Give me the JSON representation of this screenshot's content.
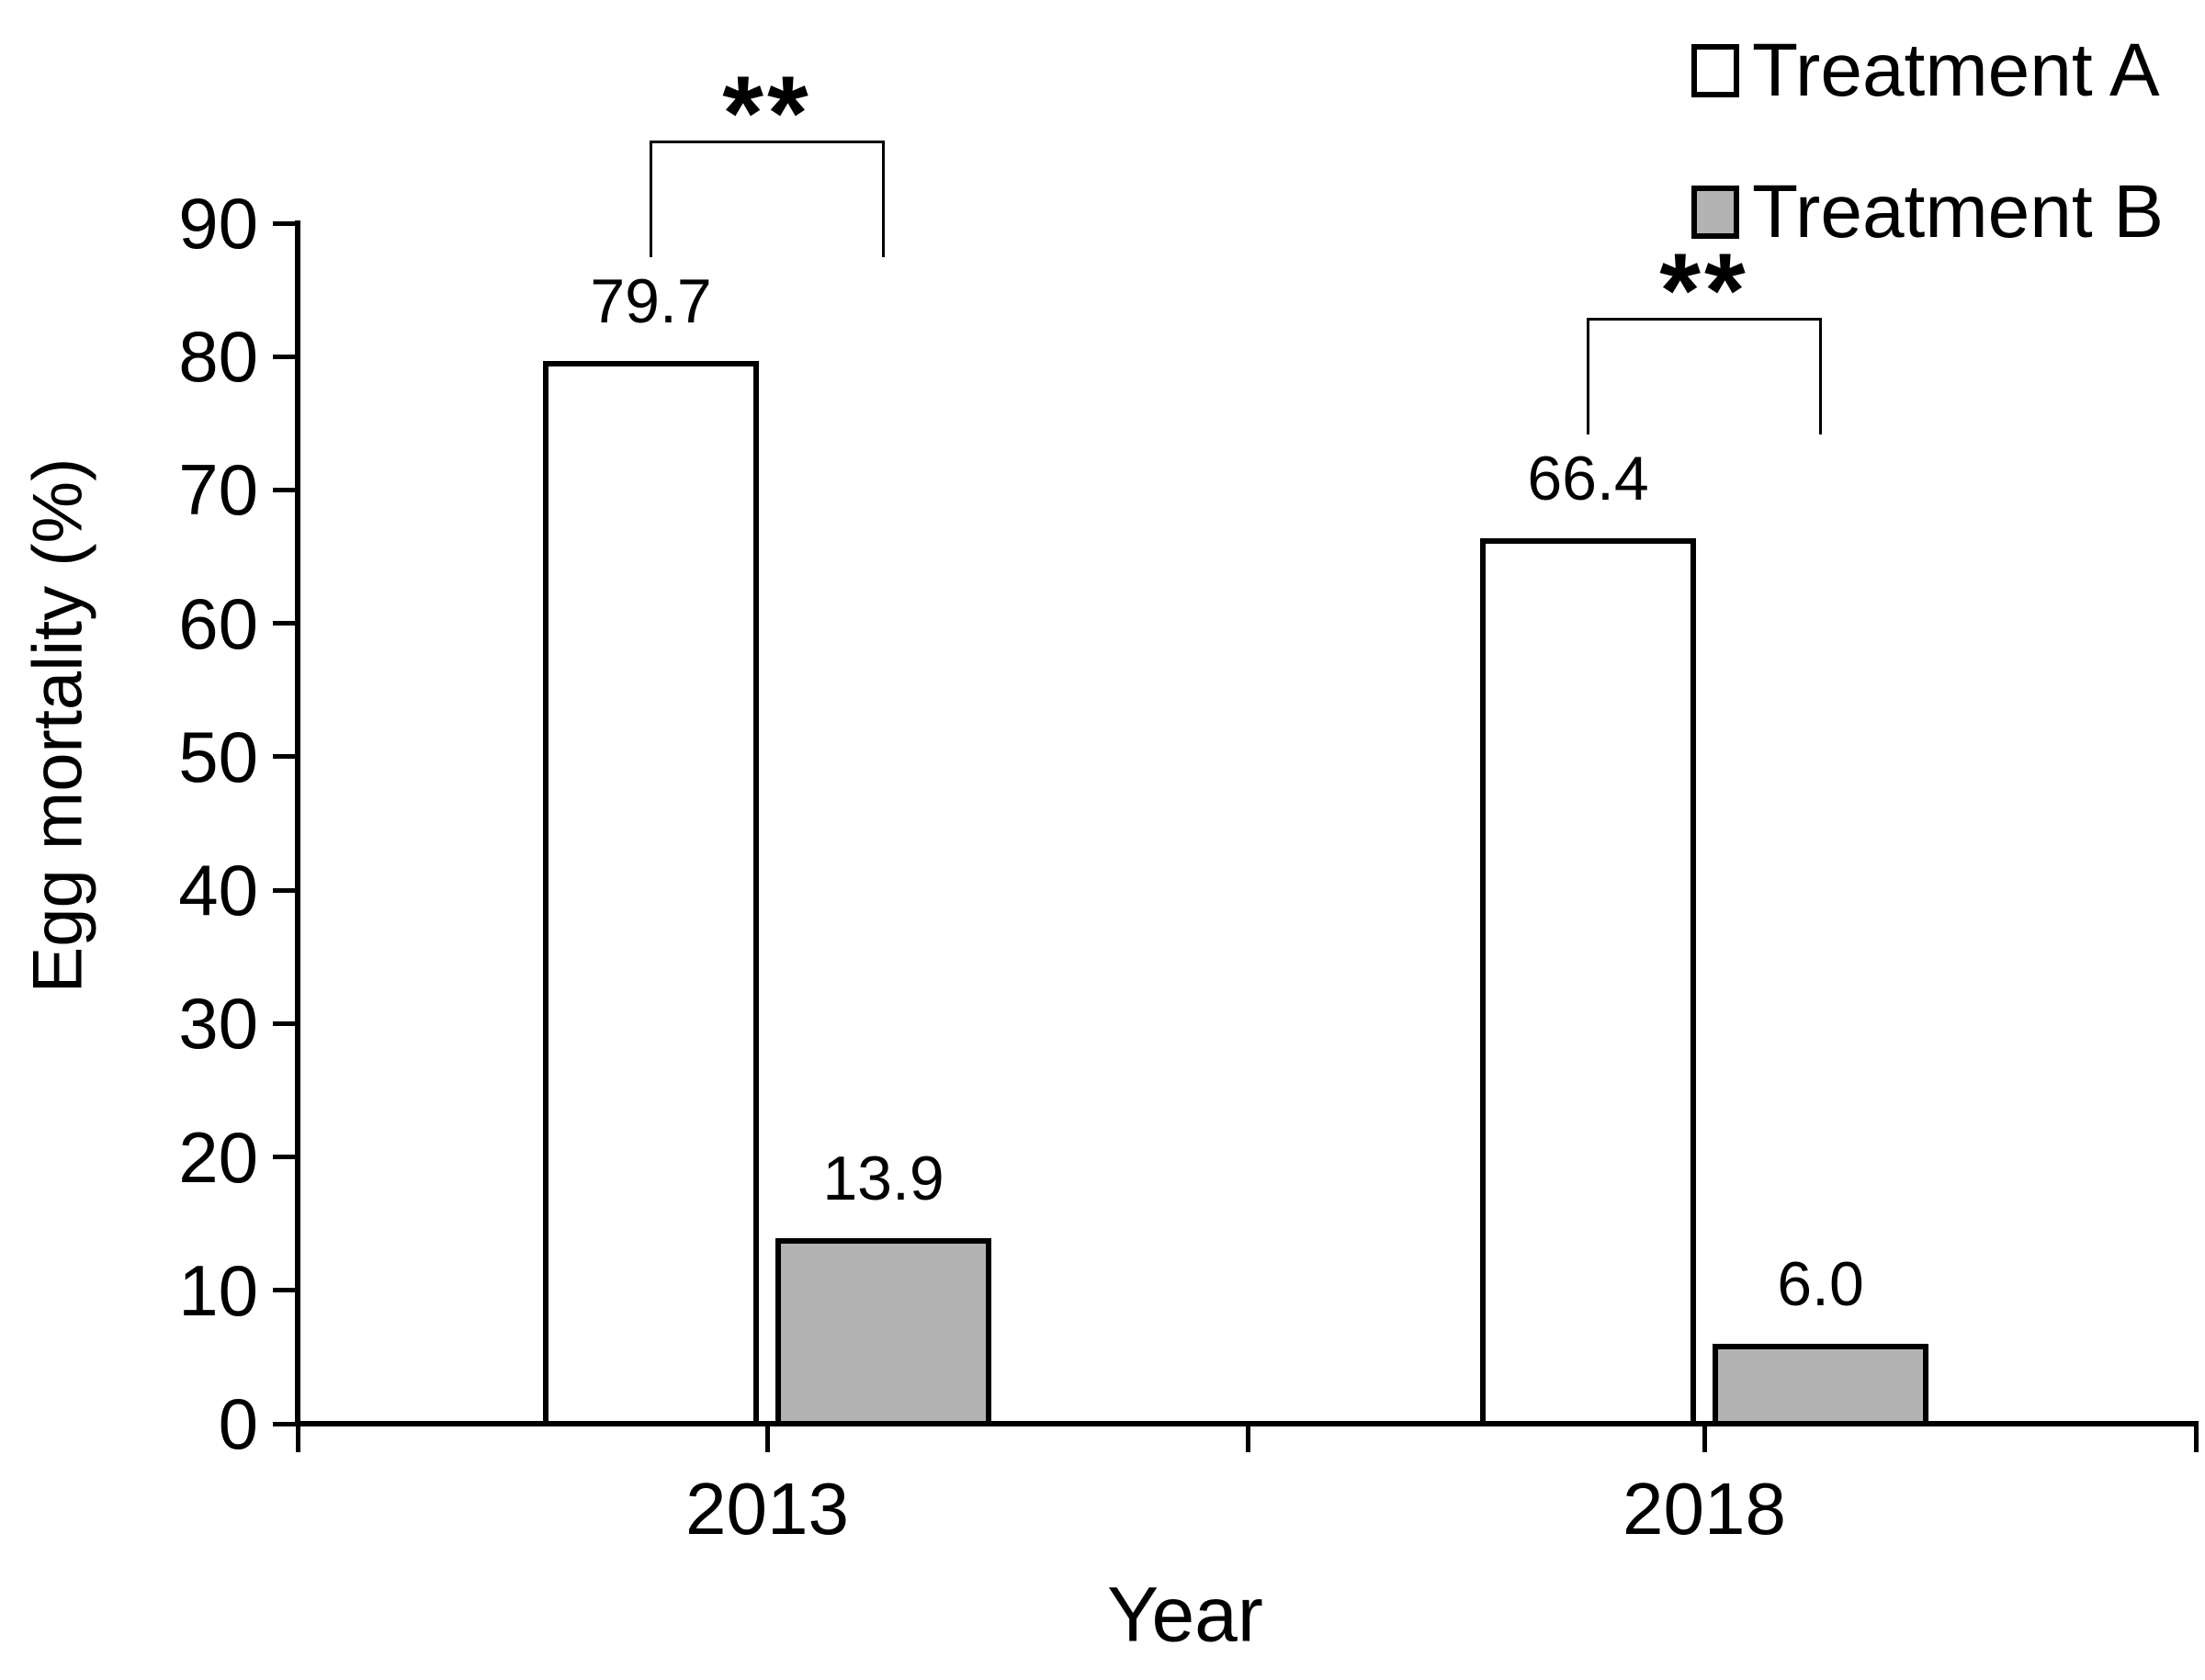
{
  "chart_data": {
    "type": "bar",
    "title": "",
    "xlabel": "Year",
    "ylabel": "Egg mortality (%)",
    "categories": [
      "2013",
      "2018"
    ],
    "series": [
      {
        "name": "Treatment A",
        "fill": "#ffffff",
        "values": [
          79.7,
          66.4
        ],
        "labels": [
          "79.7",
          "66.4"
        ]
      },
      {
        "name": "Treatment B",
        "fill": "#b3b3b3",
        "values": [
          13.9,
          6.0
        ],
        "labels": [
          "13.9",
          "6.0"
        ]
      }
    ],
    "ylim": [
      0,
      90
    ],
    "y_ticks": [
      0,
      10,
      20,
      30,
      40,
      50,
      60,
      70,
      80,
      90
    ],
    "grid": false,
    "legend_position": "top-right",
    "annotations": [
      {
        "text": "**",
        "category": "2013"
      },
      {
        "text": "**",
        "category": "2018"
      }
    ]
  },
  "colors": {
    "line": "#000000",
    "background": "#ffffff",
    "treatment_a_fill": "#ffffff",
    "treatment_b_fill": "#b3b3b3"
  }
}
